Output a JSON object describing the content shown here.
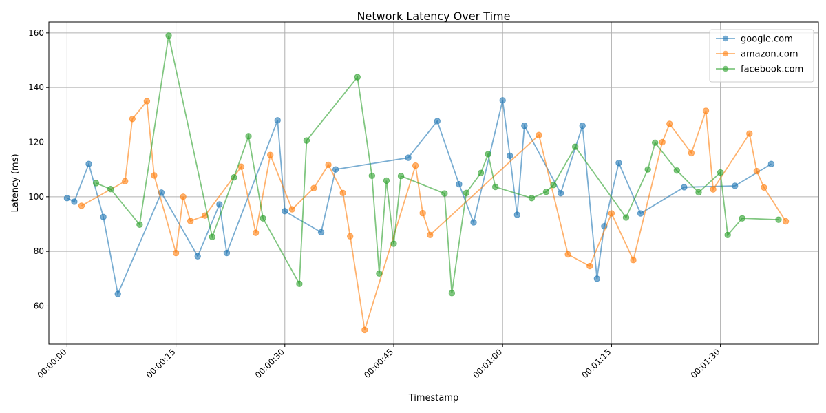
{
  "chart_data": {
    "type": "line",
    "title": "Network Latency Over Time",
    "xlabel": "Timestamp",
    "ylabel": "Latency (ms)",
    "xlim": [
      "00:00:00",
      "00:01:41"
    ],
    "ylim": [
      46,
      164
    ],
    "x_ticks": [
      "00:00:00",
      "00:00:15",
      "00:00:30",
      "00:00:45",
      "00:01:00",
      "00:01:15",
      "00:01:30"
    ],
    "y_ticks": [
      60,
      80,
      100,
      120,
      140,
      160
    ],
    "grid": true,
    "legend_position": "top-right",
    "series": [
      {
        "name": "google.com",
        "color": "#1f77b4",
        "x": [
          "00:00:00",
          "00:00:01",
          "00:00:03",
          "00:00:05",
          "00:00:07",
          "00:00:13",
          "00:00:18",
          "00:00:21",
          "00:00:22",
          "00:00:29",
          "00:00:30",
          "00:00:35",
          "00:00:37",
          "00:00:47",
          "00:00:51",
          "00:00:54",
          "00:00:56",
          "00:01:00",
          "00:01:01",
          "00:01:02",
          "00:01:03",
          "00:01:08",
          "00:01:11",
          "00:01:13",
          "00:01:14",
          "00:01:16",
          "00:01:19",
          "00:01:25",
          "00:01:32",
          "00:01:37"
        ],
        "y": [
          99.5,
          98.2,
          112,
          92.6,
          64.4,
          101.5,
          78.2,
          97.2,
          79.4,
          128,
          94.7,
          87,
          110,
          114.3,
          127.7,
          104.6,
          90.6,
          135.3,
          115,
          93.4,
          126,
          101.3,
          126,
          70,
          89.2,
          112.4,
          93.9,
          103.5,
          104,
          112
        ]
      },
      {
        "name": "amazon.com",
        "color": "#ff7f0e",
        "x": [
          "00:00:02",
          "00:00:08",
          "00:00:09",
          "00:00:11",
          "00:00:12",
          "00:00:15",
          "00:00:16",
          "00:00:17",
          "00:00:19",
          "00:00:24",
          "00:00:26",
          "00:00:28",
          "00:00:31",
          "00:00:34",
          "00:00:36",
          "00:00:38",
          "00:00:39",
          "00:00:41",
          "00:00:48",
          "00:00:49",
          "00:00:50",
          "00:01:05",
          "00:01:09",
          "00:01:12",
          "00:01:15",
          "00:01:18",
          "00:01:22",
          "00:01:23",
          "00:01:26",
          "00:01:28",
          "00:01:29",
          "00:01:34",
          "00:01:35",
          "00:01:36",
          "00:01:39"
        ],
        "y": [
          96.7,
          105.7,
          128.5,
          135,
          107.8,
          79.4,
          100,
          91.1,
          93.1,
          111,
          86.8,
          115.3,
          95.4,
          103.2,
          111.7,
          101.4,
          85.5,
          51.2,
          111.4,
          94,
          86,
          122.6,
          78.9,
          74.6,
          93.9,
          76.8,
          120,
          126.7,
          116,
          131.5,
          102.7,
          123.1,
          109.4,
          103.4,
          91
        ]
      },
      {
        "name": "facebook.com",
        "color": "#2ca02c",
        "x": [
          "00:00:04",
          "00:00:06",
          "00:00:10",
          "00:00:14",
          "00:00:20",
          "00:00:23",
          "00:00:25",
          "00:00:27",
          "00:00:32",
          "00:00:33",
          "00:00:40",
          "00:00:42",
          "00:00:43",
          "00:00:44",
          "00:00:45",
          "00:00:46",
          "00:00:52",
          "00:00:53",
          "00:00:55",
          "00:00:57",
          "00:00:58",
          "00:00:59",
          "00:01:04",
          "00:01:06",
          "00:01:07",
          "00:01:10",
          "00:01:17",
          "00:01:20",
          "00:01:21",
          "00:01:24",
          "00:01:27",
          "00:01:30",
          "00:01:31",
          "00:01:33",
          "00:01:38"
        ],
        "y": [
          105,
          102.8,
          89.8,
          159,
          85.3,
          107.1,
          122.2,
          92.1,
          68.1,
          120.6,
          143.8,
          107.7,
          71.9,
          105.9,
          82.8,
          107.6,
          101.2,
          64.7,
          101.4,
          108.7,
          115.6,
          103.6,
          99.5,
          101.8,
          104.3,
          118.3,
          92.4,
          110,
          119.8,
          109.6,
          101.6,
          108.9,
          86,
          92.1,
          91.6
        ]
      }
    ]
  }
}
